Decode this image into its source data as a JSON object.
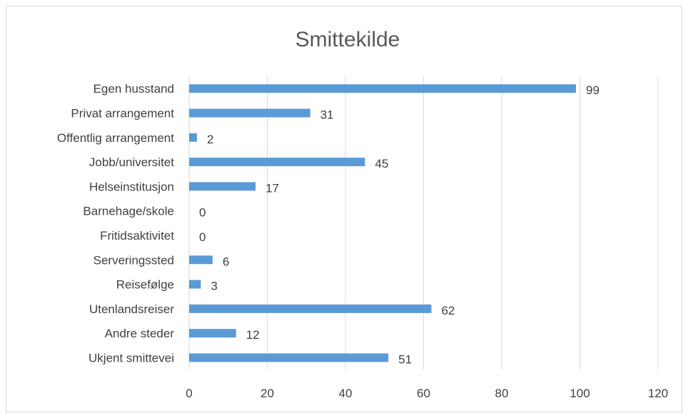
{
  "chart_data": {
    "type": "bar",
    "orientation": "horizontal",
    "title": "Smittekilde",
    "categories": [
      "Egen husstand",
      "Privat arrangement",
      "Offentlig arrangement",
      "Jobb/universitet",
      "Helseinstitusjon",
      "Barnehage/skole",
      "Fritidsaktivitet",
      "Serveringssted",
      "Reisefølge",
      "Utenlandsreiser",
      "Andre steder",
      "Ukjent smittevei"
    ],
    "values": [
      99,
      31,
      2,
      45,
      17,
      0,
      0,
      6,
      3,
      62,
      12,
      51
    ],
    "xlim": [
      0,
      120
    ],
    "xticks": [
      0,
      20,
      40,
      60,
      80,
      100,
      120
    ],
    "xlabel": "",
    "ylabel": "",
    "grid": "vertical",
    "data_labels": true,
    "bar_color": "#5b9bd5"
  }
}
